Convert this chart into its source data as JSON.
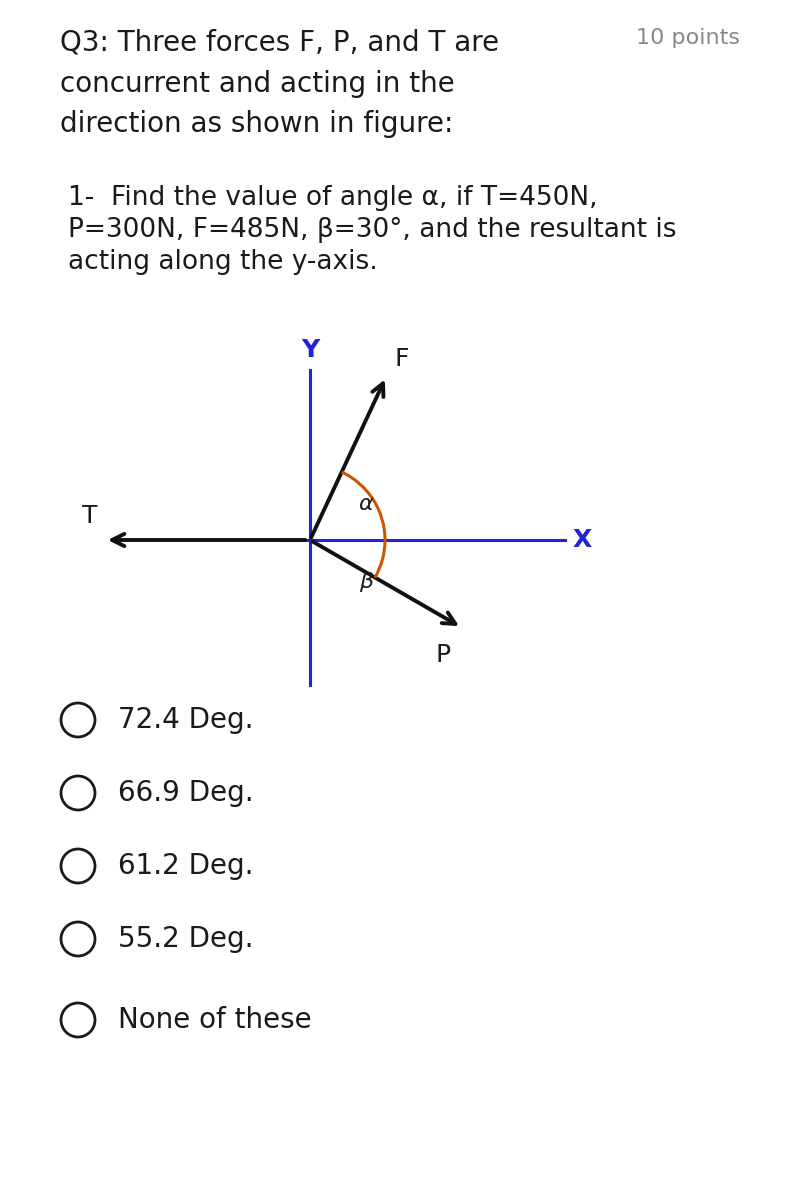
{
  "title_left": "Q3: Three forces F, P, and T are",
  "title_right": "10 points",
  "subtitle1": "concurrent and acting in the",
  "subtitle2": "direction as shown in figure:",
  "q_line1": "1-  Find the value of angle α, if T=450N,",
  "q_line2": "P=300N, F=485N, β=30°, and the resultant is",
  "q_line3": "acting along the y-axis.",
  "bg_color": "#ffffff",
  "text_color": "#1a1a1a",
  "gray_color": "#888888",
  "axis_color_blue": "#2222dd",
  "arrow_color_black": "#111111",
  "arc_color_orange": "#cc5500",
  "label_Y": "Y",
  "label_X": "X",
  "label_F": "F",
  "label_T": "T",
  "label_P": "P",
  "label_alpha": "α",
  "label_beta": "β",
  "options": [
    "72.4 Deg.",
    "66.9 Deg.",
    "61.2 Deg.",
    "55.2 Deg.",
    "None of these"
  ],
  "fig_width": 7.88,
  "fig_height": 12.0,
  "alpha_deg": 65,
  "beta_deg": 30
}
